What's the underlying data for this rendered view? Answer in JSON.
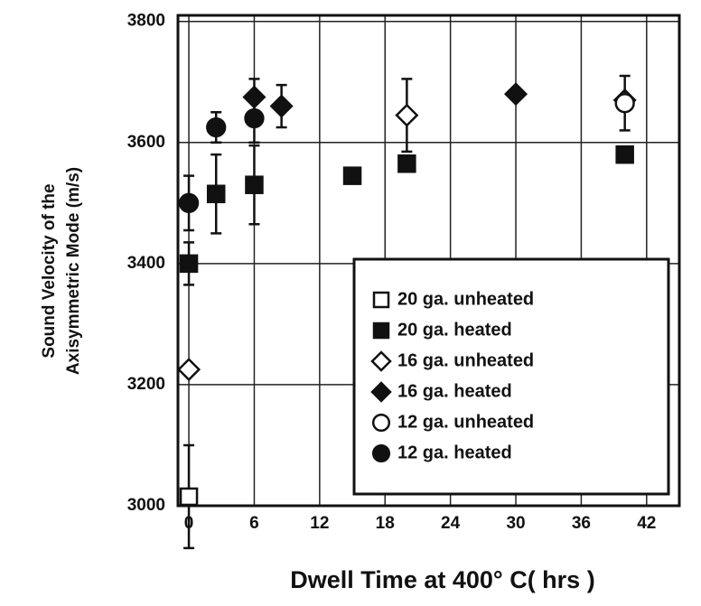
{
  "chart_data": {
    "type": "scatter",
    "xlabel": "Dwell Time at 400° C( hrs )",
    "ylabel": [
      "Sound Velocity of the",
      "Axisymmetric Mode (m/s)"
    ],
    "xlim": [
      -1,
      45
    ],
    "ylim": [
      3000,
      3810
    ],
    "xticks": [
      0,
      6,
      12,
      18,
      24,
      30,
      36,
      42
    ],
    "yticks": [
      3000,
      3200,
      3400,
      3600,
      3800
    ],
    "grid": true,
    "legend": "lower right",
    "series": [
      {
        "name": "20 ga. unheated",
        "marker": "square",
        "filled": false,
        "color": "#111",
        "x": [
          0
        ],
        "values": [
          3015
        ],
        "errors": [
          85
        ]
      },
      {
        "name": "20 ga. heated",
        "marker": "square",
        "filled": true,
        "color": "#111",
        "x": [
          0,
          2.5,
          6,
          15,
          20,
          40
        ],
        "values": [
          3400,
          3515,
          3530,
          3545,
          3565,
          3580
        ],
        "errors": [
          35,
          65,
          65,
          null,
          null,
          null
        ]
      },
      {
        "name": "16 ga. unheated",
        "marker": "diamond",
        "filled": false,
        "color": "#111",
        "x": [
          0,
          20,
          40
        ],
        "values": [
          3225,
          3645,
          3670
        ],
        "errors": [
          null,
          60,
          null
        ]
      },
      {
        "name": "16 ga. heated",
        "marker": "diamond",
        "filled": true,
        "color": "#111",
        "x": [
          6,
          8.5,
          30
        ],
        "values": [
          3675,
          3660,
          3680
        ],
        "errors": [
          30,
          35,
          null
        ]
      },
      {
        "name": "12 ga. unheated",
        "marker": "circle",
        "filled": false,
        "color": "#111",
        "x": [
          40
        ],
        "values": [
          3665
        ],
        "errors": [
          45
        ]
      },
      {
        "name": "12 ga. heated",
        "marker": "circle",
        "filled": true,
        "color": "#111",
        "x": [
          0,
          2.5,
          6
        ],
        "values": [
          3500,
          3625,
          3640
        ],
        "errors": [
          45,
          25,
          40
        ]
      }
    ]
  }
}
